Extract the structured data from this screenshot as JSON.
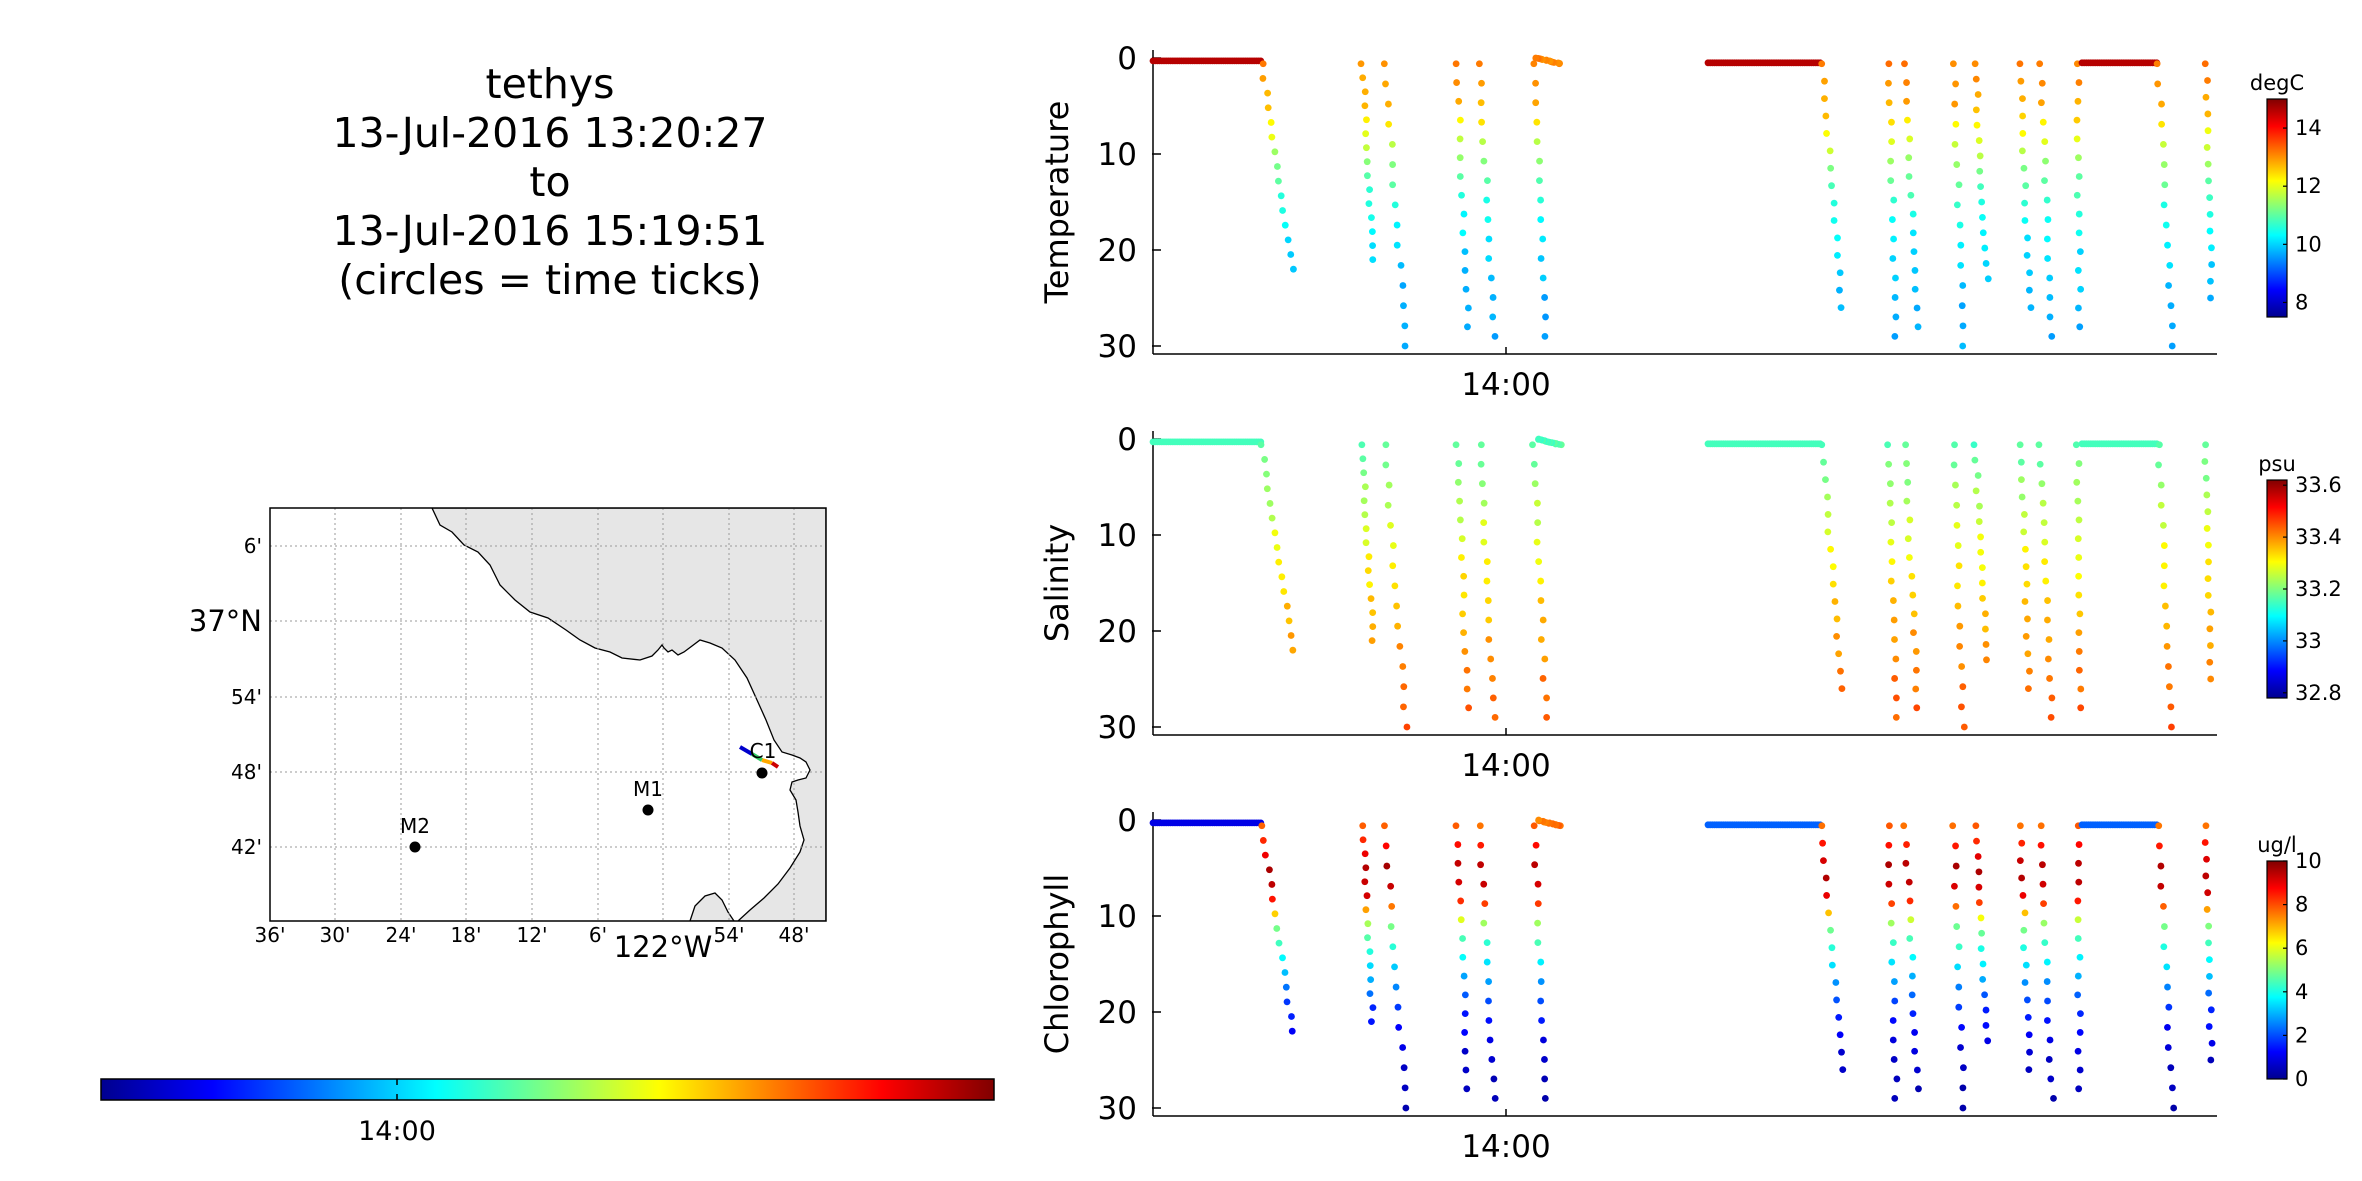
{
  "header": {
    "vehicle": "tethys",
    "start": "13-Jul-2016 13:20:27",
    "to": "to",
    "end": "13-Jul-2016 15:19:51",
    "note": "(circles = time ticks)"
  },
  "map": {
    "lat_labels": [
      "6'",
      "37°N",
      "54'",
      "48'",
      "42'"
    ],
    "lon_labels": [
      "36'",
      "30'",
      "24'",
      "18'",
      "12'",
      "6'",
      "122°W",
      "54'",
      "48'"
    ],
    "stations": [
      {
        "name": "M2",
        "lon": -122.38,
        "lat": 36.7
      },
      {
        "name": "M1",
        "lon": -122.03,
        "lat": 36.75
      },
      {
        "name": "C1",
        "lon": -121.85,
        "lat": 36.8
      }
    ],
    "colors": {
      "land": "#e6e6e6",
      "water": "#ffffff",
      "grid": "#9a9a9a"
    }
  },
  "time_bar": {
    "tick_label": "14:00",
    "colormap": "jet"
  },
  "chart_data": [
    {
      "type": "scatter",
      "ylabel": "Temperature",
      "xtick_label": "14:00",
      "ylim": [
        30,
        0
      ],
      "yticks": [
        0,
        10,
        20,
        30
      ],
      "colorbar": {
        "unit": "degC",
        "ticks": [
          8,
          10,
          12,
          14
        ],
        "range": [
          7.5,
          15
        ]
      },
      "surface_value": 14.6,
      "gradient": [
        [
          0,
          13.2
        ],
        [
          5,
          12.8
        ],
        [
          10,
          11.6
        ],
        [
          15,
          10.6
        ],
        [
          20,
          10.1
        ],
        [
          25,
          9.8
        ],
        [
          30,
          9.7
        ]
      ]
    },
    {
      "type": "scatter",
      "ylabel": "Salinity",
      "xtick_label": "14:00",
      "ylim": [
        30,
        0
      ],
      "yticks": [
        0,
        10,
        20,
        30
      ],
      "colorbar": {
        "unit": "psu",
        "ticks": [
          32.8,
          33,
          33.2,
          33.4,
          33.6
        ],
        "range": [
          32.78,
          33.62
        ]
      },
      "surface_value": 33.15,
      "gradient": [
        [
          0,
          33.15
        ],
        [
          5,
          33.22
        ],
        [
          10,
          33.28
        ],
        [
          15,
          33.33
        ],
        [
          20,
          33.38
        ],
        [
          25,
          33.42
        ],
        [
          30,
          33.45
        ]
      ]
    },
    {
      "type": "scatter",
      "ylabel": "Chlorophyll",
      "xtick_label": "14:00",
      "ylim": [
        30,
        0
      ],
      "yticks": [
        0,
        10,
        20,
        30
      ],
      "colorbar": {
        "unit": "ug/l",
        "ticks": [
          0,
          2,
          4,
          6,
          8,
          10
        ],
        "range": [
          0,
          10
        ]
      },
      "surface_value": 1.0,
      "gradient": [
        [
          0,
          7.5
        ],
        [
          5,
          9.6
        ],
        [
          8,
          9.0
        ],
        [
          11,
          5.0
        ],
        [
          15,
          3.5
        ],
        [
          20,
          1.5
        ],
        [
          25,
          0.7
        ],
        [
          30,
          0.4
        ]
      ]
    }
  ]
}
